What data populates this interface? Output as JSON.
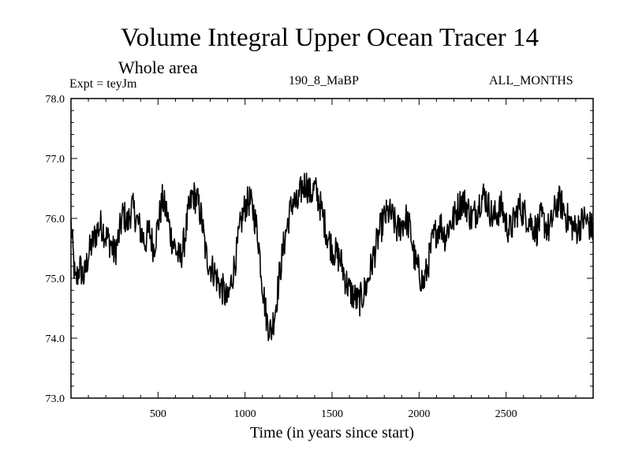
{
  "chart_data": {
    "type": "line",
    "title": "Volume Integral Upper Ocean Tracer 14",
    "subtitle": "Whole area",
    "expt_label": "Expt = teyJm",
    "run_label": "190_8_MaBP",
    "months_label": "ALL_MONTHS",
    "xlabel": "Time (in years since start)",
    "ylabel": "",
    "xlim": [
      0,
      3000
    ],
    "ylim": [
      73.0,
      78.0
    ],
    "x_ticks": [
      500,
      1000,
      1500,
      2000,
      2500
    ],
    "x_tick_labels": [
      "500",
      "1000",
      "1500",
      "2000",
      "2500"
    ],
    "y_ticks": [
      73.0,
      74.0,
      75.0,
      76.0,
      77.0,
      78.0
    ],
    "y_tick_labels": [
      "73.0",
      "74.0",
      "75.0",
      "76.0",
      "77.0",
      "78.0"
    ],
    "line_color": "#000000",
    "series": [
      {
        "name": "Tracer 14",
        "x_step": 25,
        "values": [
          75.9,
          74.9,
          75.2,
          75.0,
          75.4,
          75.6,
          75.8,
          75.9,
          75.7,
          75.6,
          75.4,
          75.7,
          76.1,
          75.9,
          76.2,
          76.0,
          75.8,
          75.6,
          75.8,
          75.5,
          75.9,
          76.3,
          76.1,
          75.7,
          75.5,
          75.3,
          75.6,
          76.1,
          76.4,
          76.3,
          76.0,
          75.4,
          75.2,
          75.1,
          74.9,
          74.8,
          74.6,
          75.0,
          75.4,
          75.9,
          76.2,
          76.3,
          76.1,
          75.7,
          74.9,
          74.3,
          74.1,
          74.5,
          75.1,
          75.6,
          76.0,
          76.3,
          76.2,
          76.5,
          76.6,
          76.4,
          76.5,
          76.3,
          76.0,
          75.7,
          75.5,
          75.4,
          75.3,
          75.0,
          74.8,
          74.7,
          74.6,
          74.7,
          74.9,
          75.2,
          75.5,
          75.8,
          76.0,
          76.1,
          76.0,
          75.8,
          75.9,
          76.0,
          75.8,
          75.3,
          75.1,
          74.9,
          75.2,
          75.6,
          75.8,
          75.9,
          75.7,
          75.9,
          76.0,
          76.2,
          76.3,
          76.2,
          76.0,
          76.1,
          76.3,
          76.4,
          76.2,
          76.0,
          76.1,
          76.2,
          75.9,
          75.8,
          76.0,
          76.2,
          76.1,
          76.0,
          75.9,
          75.8,
          76.0,
          75.9,
          75.8,
          76.1,
          76.3,
          76.2,
          76.0,
          75.9,
          75.8,
          75.9,
          76.0,
          75.9,
          75.8
        ]
      }
    ]
  }
}
